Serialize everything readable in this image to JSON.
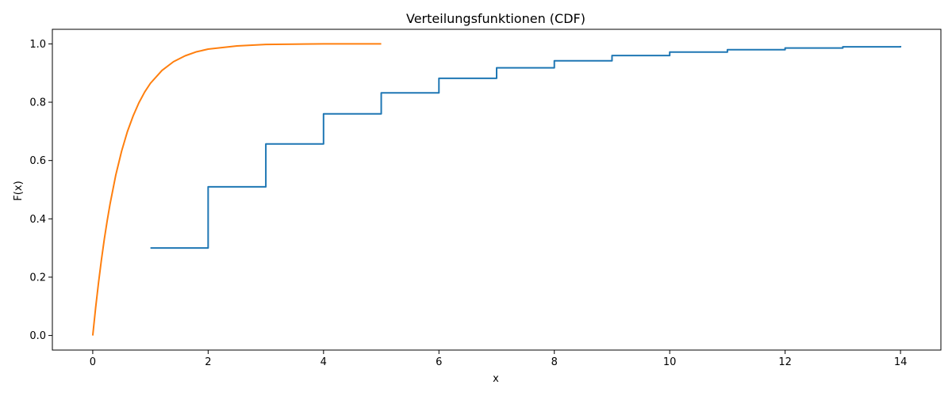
{
  "chart_data": {
    "type": "line",
    "title": "Verteilungsfunktionen (CDF)",
    "xlabel": "x",
    "ylabel": "F(x)",
    "xlim": [
      -0.7,
      14.7
    ],
    "ylim": [
      -0.05,
      1.05
    ],
    "xticks": [
      0,
      2,
      4,
      6,
      8,
      10,
      12,
      14
    ],
    "xtick_labels": [
      "0",
      "2",
      "4",
      "6",
      "8",
      "10",
      "12",
      "14"
    ],
    "yticks": [
      0.0,
      0.2,
      0.4,
      0.6,
      0.8,
      1.0
    ],
    "ytick_labels": [
      "0.0",
      "0.2",
      "0.4",
      "0.6",
      "0.8",
      "1.0"
    ],
    "grid": false,
    "series": [
      {
        "style": "step-post",
        "color": "#1f77b4",
        "x": [
          1,
          2,
          3,
          4,
          5,
          6,
          7,
          8,
          9,
          10,
          11,
          12,
          13,
          14
        ],
        "y": [
          0.3,
          0.51,
          0.657,
          0.76,
          0.832,
          0.882,
          0.918,
          0.942,
          0.96,
          0.972,
          0.98,
          0.986,
          0.99,
          0.993
        ]
      },
      {
        "style": "line",
        "color": "#ff7f0e",
        "x": [
          0,
          0.05,
          0.1,
          0.15,
          0.2,
          0.25,
          0.3,
          0.4,
          0.5,
          0.6,
          0.7,
          0.8,
          0.9,
          1.0,
          1.2,
          1.4,
          1.6,
          1.8,
          2.0,
          2.5,
          3.0,
          3.5,
          4.0,
          4.5,
          5.0
        ],
        "y": [
          0,
          0.095,
          0.181,
          0.259,
          0.33,
          0.393,
          0.451,
          0.551,
          0.632,
          0.699,
          0.753,
          0.798,
          0.835,
          0.865,
          0.909,
          0.939,
          0.959,
          0.973,
          0.982,
          0.993,
          0.998,
          0.999,
          1.0,
          1.0,
          1.0
        ]
      }
    ]
  }
}
